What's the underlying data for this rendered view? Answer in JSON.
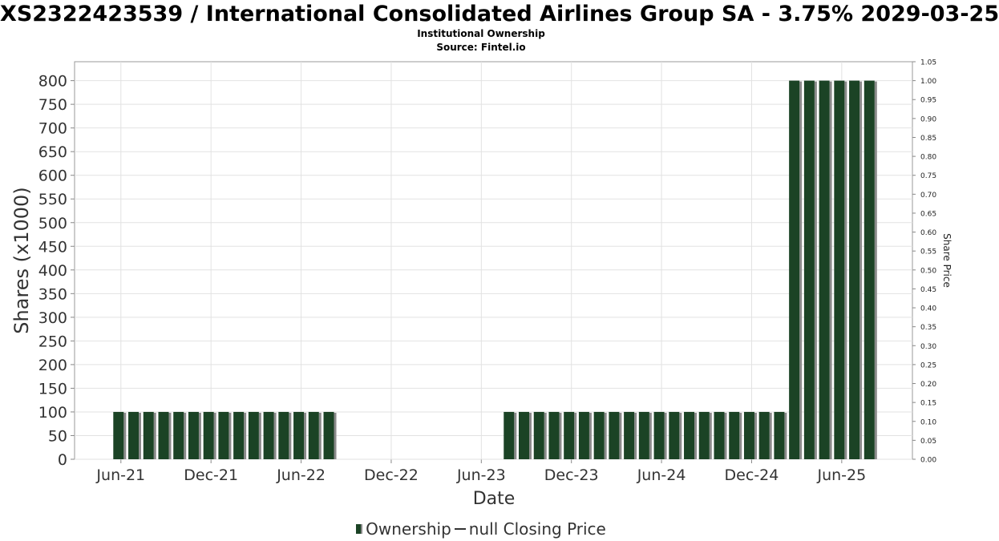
{
  "chart_data": {
    "type": "bar",
    "title": "XS2322423539 / International Consolidated Airlines Group SA - 3.75% 2029-03-25",
    "subtitle": "Institutional Ownership",
    "source": "Source: Fintel.io",
    "xlabel": "Date",
    "ylabel": "Shares (x1000)",
    "y2label": "Share Price",
    "ylim": [
      0,
      840
    ],
    "y2lim": [
      0,
      1.05
    ],
    "grid": true,
    "legend_position": "bottom",
    "x_tick_labels": [
      "Jun-21",
      "Dec-21",
      "Jun-22",
      "Dec-22",
      "Jun-23",
      "Dec-23",
      "Jun-24",
      "Dec-24",
      "Jun-25"
    ],
    "y_ticks": [
      0,
      50,
      100,
      150,
      200,
      250,
      300,
      350,
      400,
      450,
      500,
      550,
      600,
      650,
      700,
      750,
      800
    ],
    "y2_ticks": [
      "0.00",
      "0.05",
      "0.10",
      "0.15",
      "0.20",
      "0.25",
      "0.30",
      "0.35",
      "0.40",
      "0.45",
      "0.50",
      "0.55",
      "0.60",
      "0.65",
      "0.70",
      "0.75",
      "0.80",
      "0.85",
      "0.90",
      "0.95",
      "1.00",
      "1.05"
    ],
    "series": [
      {
        "name": "Ownership",
        "color": "#1b4325",
        "points": [
          [
            "2021-06-01",
            100
          ],
          [
            "2021-07-01",
            100
          ],
          [
            "2021-08-01",
            100
          ],
          [
            "2021-09-01",
            100
          ],
          [
            "2021-10-01",
            100
          ],
          [
            "2021-11-01",
            100
          ],
          [
            "2021-12-01",
            100
          ],
          [
            "2022-01-01",
            100
          ],
          [
            "2022-02-01",
            100
          ],
          [
            "2022-03-01",
            100
          ],
          [
            "2022-04-01",
            100
          ],
          [
            "2022-05-01",
            100
          ],
          [
            "2022-06-01",
            100
          ],
          [
            "2022-07-01",
            100
          ],
          [
            "2022-08-01",
            100
          ],
          [
            "2023-08-01",
            100
          ],
          [
            "2023-09-01",
            100
          ],
          [
            "2023-10-01",
            100
          ],
          [
            "2023-11-01",
            100
          ],
          [
            "2023-12-01",
            100
          ],
          [
            "2024-01-01",
            100
          ],
          [
            "2024-02-01",
            100
          ],
          [
            "2024-03-01",
            100
          ],
          [
            "2024-04-01",
            100
          ],
          [
            "2024-05-01",
            100
          ],
          [
            "2024-06-01",
            100
          ],
          [
            "2024-07-01",
            100
          ],
          [
            "2024-08-01",
            100
          ],
          [
            "2024-09-01",
            100
          ],
          [
            "2024-10-01",
            100
          ],
          [
            "2024-11-01",
            100
          ],
          [
            "2024-12-01",
            100
          ],
          [
            "2025-01-01",
            100
          ],
          [
            "2025-02-01",
            100
          ],
          [
            "2025-03-01",
            800
          ],
          [
            "2025-04-01",
            800
          ],
          [
            "2025-05-01",
            800
          ],
          [
            "2025-06-01",
            800
          ],
          [
            "2025-07-01",
            800
          ],
          [
            "2025-08-01",
            800
          ]
        ]
      }
    ],
    "legend": {
      "ownership_label": "Ownership",
      "price_label": "null Closing Price"
    }
  }
}
